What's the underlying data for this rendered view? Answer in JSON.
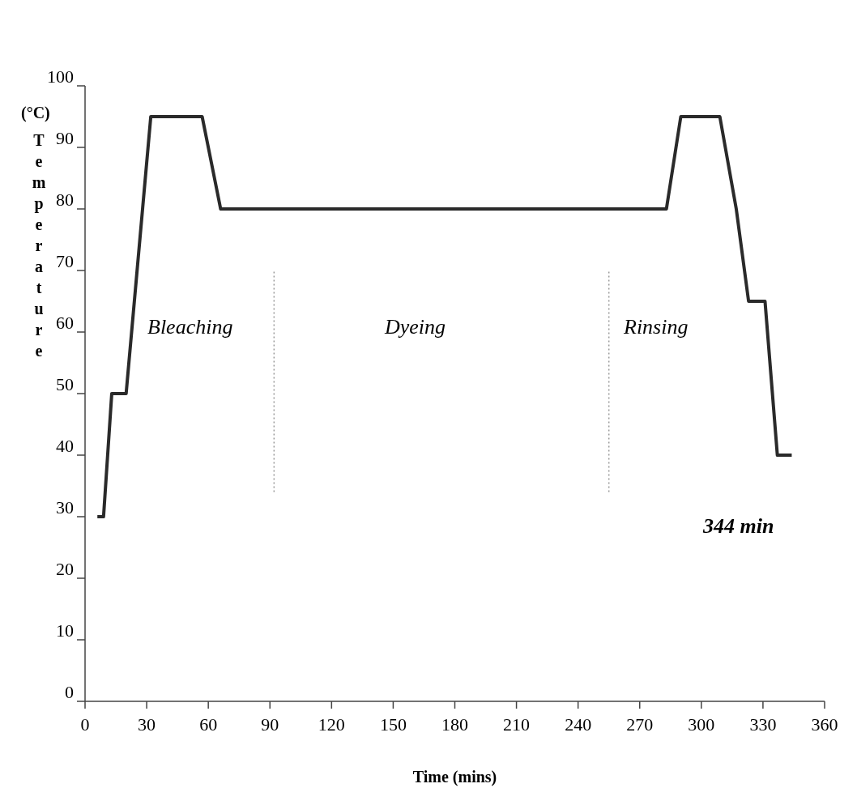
{
  "chart_data": {
    "type": "line",
    "xlabel": "Time (mins)",
    "ylabel": "Temperature",
    "x": [
      6,
      9,
      13,
      20,
      32,
      57,
      66,
      283,
      290,
      309,
      317,
      323,
      331,
      337,
      344
    ],
    "series": [
      {
        "color": "#2a2a2a",
        "values": [
          30,
          30,
          50,
          50,
          95,
          95,
          80,
          80,
          95,
          95,
          80,
          65,
          65,
          40,
          40
        ]
      }
    ],
    "xlim": [
      0,
      360
    ],
    "xticks": [
      0,
      30,
      60,
      90,
      120,
      150,
      180,
      210,
      240,
      270,
      300,
      330,
      360
    ],
    "ylim": [
      0,
      100
    ],
    "yticks": [
      0,
      10,
      20,
      30,
      40,
      50,
      60,
      70,
      80,
      90,
      100
    ],
    "ref_lines": [
      {
        "axis": "x",
        "value": 92,
        "line_style": "dotted",
        "color": "#999999"
      },
      {
        "axis": "x",
        "value": 255,
        "line_style": "dotted",
        "color": "#999999"
      }
    ],
    "annotations": [
      "(°C)",
      "Bleaching",
      "Dyeing",
      "Rinsing",
      "344 min"
    ],
    "grid": false,
    "marker": "none",
    "line_style": "solid"
  }
}
